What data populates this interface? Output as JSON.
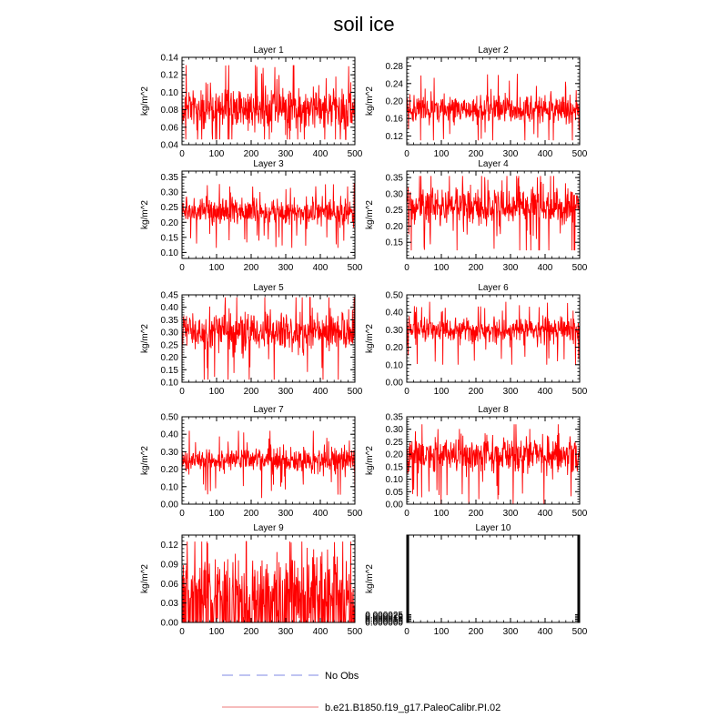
{
  "figure": {
    "title": "soil ice"
  },
  "legend": {
    "entries": [
      {
        "label": "No Obs",
        "color": "#aab0ee",
        "dash": true
      },
      {
        "label": "b.e21.B1850.f19_g17.PaleoCalibr.PI.02",
        "color": "#f4a6a6",
        "dash": false
      }
    ]
  },
  "colors": {
    "series": "#ff0000"
  },
  "chart_data": [
    {
      "type": "line",
      "title": "Layer 1",
      "ylabel": "kg/m^2",
      "xlim": [
        0,
        500
      ],
      "xticks": [
        "0",
        "100",
        "200",
        "300",
        "400",
        "500"
      ],
      "ylim": [
        0.04,
        0.14
      ],
      "yticks": [
        "0.04",
        "0.06",
        "0.08",
        "0.10",
        "0.12",
        "0.14"
      ],
      "series": [
        {
          "mean": 0.082,
          "amp": 0.016,
          "min": 0.046,
          "max": 0.131,
          "spike": 0.13,
          "points": 500
        }
      ]
    },
    {
      "type": "line",
      "title": "Layer 2",
      "ylabel": "kg/m^2",
      "xlim": [
        0,
        500
      ],
      "xticks": [
        "0",
        "100",
        "200",
        "300",
        "400",
        "500"
      ],
      "ylim": [
        0.1,
        0.3
      ],
      "yticks": [
        "0.12",
        "0.16",
        "0.20",
        "0.24",
        "0.28"
      ],
      "series": [
        {
          "mean": 0.18,
          "amp": 0.022,
          "min": 0.11,
          "max": 0.27,
          "points": 500
        }
      ]
    },
    {
      "type": "line",
      "title": "Layer 3",
      "ylabel": "kg/m^2",
      "xlim": [
        0,
        500
      ],
      "xticks": [
        "0",
        "100",
        "200",
        "300",
        "400",
        "500"
      ],
      "ylim": [
        0.08,
        0.37
      ],
      "yticks": [
        "0.10",
        "0.15",
        "0.20",
        "0.25",
        "0.30",
        "0.35"
      ],
      "series": [
        {
          "mean": 0.235,
          "amp": 0.03,
          "min": 0.115,
          "max": 0.33,
          "points": 500
        }
      ]
    },
    {
      "type": "line",
      "title": "Layer 4",
      "ylabel": "kg/m^2",
      "xlim": [
        0,
        500
      ],
      "xticks": [
        "0",
        "100",
        "200",
        "300",
        "400",
        "500"
      ],
      "ylim": [
        0.1,
        0.37
      ],
      "yticks": [
        "0.15",
        "0.20",
        "0.25",
        "0.30",
        "0.35"
      ],
      "series": [
        {
          "mean": 0.26,
          "amp": 0.04,
          "min": 0.125,
          "max": 0.355,
          "points": 500
        }
      ]
    },
    {
      "type": "line",
      "title": "Layer 5",
      "ylabel": "kg/m^2",
      "xlim": [
        0,
        500
      ],
      "xticks": [
        "0",
        "100",
        "200",
        "300",
        "400",
        "500"
      ],
      "ylim": [
        0.1,
        0.45
      ],
      "yticks": [
        "0.10",
        "0.15",
        "0.20",
        "0.25",
        "0.30",
        "0.35",
        "0.40",
        "0.45"
      ],
      "series": [
        {
          "mean": 0.3,
          "amp": 0.05,
          "min": 0.11,
          "max": 0.44,
          "points": 500
        }
      ]
    },
    {
      "type": "line",
      "title": "Layer 6",
      "ylabel": "kg/m^2",
      "xlim": [
        0,
        500
      ],
      "xticks": [
        "0",
        "100",
        "200",
        "300",
        "400",
        "500"
      ],
      "ylim": [
        0.0,
        0.5
      ],
      "yticks": [
        "0.00",
        "0.10",
        "0.20",
        "0.30",
        "0.40",
        "0.50"
      ],
      "series": [
        {
          "mean": 0.3,
          "amp": 0.05,
          "min": 0.1,
          "max": 0.46,
          "points": 500
        }
      ]
    },
    {
      "type": "line",
      "title": "Layer 7",
      "ylabel": "kg/m^2",
      "xlim": [
        0,
        500
      ],
      "xticks": [
        "0",
        "100",
        "200",
        "300",
        "400",
        "500"
      ],
      "ylim": [
        0.0,
        0.5
      ],
      "yticks": [
        "0.00",
        "0.10",
        "0.20",
        "0.30",
        "0.40",
        "0.50"
      ],
      "series": [
        {
          "mean": 0.25,
          "amp": 0.05,
          "min": 0.01,
          "max": 0.42,
          "points": 500
        }
      ]
    },
    {
      "type": "line",
      "title": "Layer 8",
      "ylabel": "kg/m^2",
      "xlim": [
        0,
        500
      ],
      "xticks": [
        "0",
        "100",
        "200",
        "300",
        "400",
        "500"
      ],
      "ylim": [
        0.0,
        0.35
      ],
      "yticks": [
        "0.00",
        "0.05",
        "0.10",
        "0.15",
        "0.20",
        "0.25",
        "0.30",
        "0.35"
      ],
      "series": [
        {
          "mean": 0.2,
          "amp": 0.05,
          "min": 0.0,
          "max": 0.32,
          "points": 500
        }
      ]
    },
    {
      "type": "line",
      "title": "Layer 9",
      "ylabel": "kg/m^2",
      "xlim": [
        0,
        500
      ],
      "xticks": [
        "0",
        "100",
        "200",
        "300",
        "400",
        "500"
      ],
      "ylim": [
        0.0,
        0.135
      ],
      "yticks": [
        "0.00",
        "0.03",
        "0.06",
        "0.09",
        "0.12"
      ],
      "series": [
        {
          "mean": 0.05,
          "amp": 0.04,
          "min": 0.0,
          "max": 0.125,
          "points": 500,
          "zero_fraction": 0.3
        }
      ]
    },
    {
      "type": "line",
      "title": "Layer 10",
      "ylabel": "kg/m^2",
      "xlim": [
        0,
        500
      ],
      "xticks": [
        "0",
        "100",
        "200",
        "300",
        "400",
        "500"
      ],
      "ylim": [
        0.0,
        0.00028
      ],
      "yticks": [
        "0.000000",
        "0.000005",
        "0.000010",
        "0.000015",
        "0.000020",
        "0.000025"
      ],
      "series": [
        {
          "mean": 0.0,
          "amp": 0.0,
          "min": 0.0,
          "max": 0.00025,
          "spike": 0.00025,
          "points": 500,
          "flat": true
        }
      ]
    }
  ]
}
